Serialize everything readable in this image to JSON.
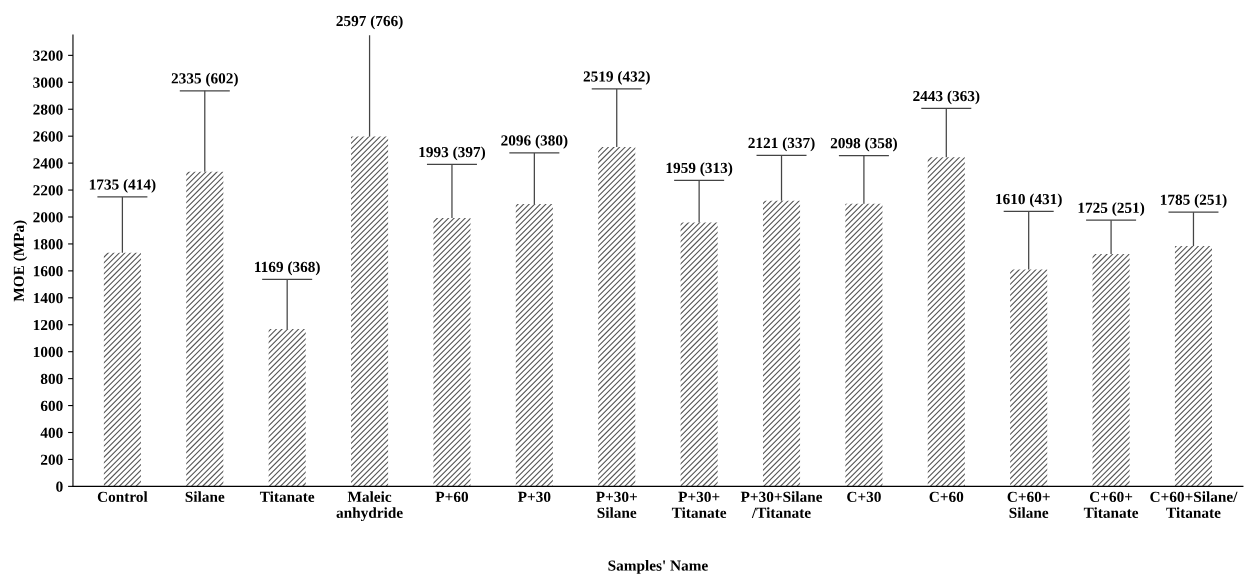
{
  "chart_data": {
    "type": "bar",
    "xlabel": "Samples' Name",
    "ylabel": "MOE (MPa)",
    "categories": [
      "Control",
      "Silane",
      "Titanate",
      "Maleic\nanhydride",
      "P+60",
      "P+30",
      "P+30+\nSilane",
      "P+30+\nTitanate",
      "P+30+Silane\n/Titanate",
      "C+30",
      "C+60",
      "C+60+\nSilane",
      "C+60+\nTitanate",
      "C+60+Silane/\nTitanate"
    ],
    "values": [
      1735,
      2335,
      1169,
      2597,
      1993,
      2096,
      2519,
      1959,
      2121,
      2098,
      2443,
      1610,
      1725,
      1785
    ],
    "errors": [
      [
        1735,
        2149
      ],
      [
        2335,
        2937
      ],
      [
        1169,
        1537
      ],
      [
        2597,
        3363
      ],
      [
        1993,
        2390
      ],
      [
        2096,
        2476
      ],
      [
        2519,
        2951
      ],
      [
        1959,
        2272
      ],
      [
        2121,
        2458
      ],
      [
        2098,
        2456
      ],
      [
        2443,
        2806
      ],
      [
        1610,
        2041
      ],
      [
        1725,
        1976
      ],
      [
        1785,
        2036
      ]
    ],
    "annotations": [
      {
        "text": "1735 (414)",
        "x": "Control",
        "y": 2149
      },
      {
        "text": "2335 (602)",
        "x": "Silane",
        "y": 2937
      },
      {
        "text": "1169 (368)",
        "x": "Titanate",
        "y": 1537
      },
      {
        "text": "2597 (766)",
        "x": "Maleic\nanhydride",
        "y": 3363
      },
      {
        "text": "1993 (397)",
        "x": "P+60",
        "y": 2390
      },
      {
        "text": "2096 (380)",
        "x": "P+30",
        "y": 2476
      },
      {
        "text": "2519 (432)",
        "x": "P+30+\nSilane",
        "y": 2951
      },
      {
        "text": "1959 (313)",
        "x": "P+30+\nTitanate",
        "y": 2272
      },
      {
        "text": "2121 (337)",
        "x": "P+30+Silane\n/Titanate",
        "y": 2458
      },
      {
        "text": "2098 (358)",
        "x": "C+30",
        "y": 2456
      },
      {
        "text": "2443 (363)",
        "x": "C+60",
        "y": 2806
      },
      {
        "text": "1610 (431)",
        "x": "C+60+\nSilane",
        "y": 2041
      },
      {
        "text": "1725 (251)",
        "x": "C+60+\nTitanate",
        "y": 1976
      },
      {
        "text": "1785 (251)",
        "x": "C+60+Silane/\nTitanate",
        "y": 2036
      }
    ],
    "color": "#555555",
    "ylim": [
      0,
      3350
    ],
    "yticks": [
      0,
      200,
      400,
      600,
      800,
      1000,
      1200,
      1400,
      1600,
      1800,
      2000,
      2200,
      2400,
      2600,
      2800,
      3000,
      3200
    ],
    "grid": false,
    "legend": false
  }
}
